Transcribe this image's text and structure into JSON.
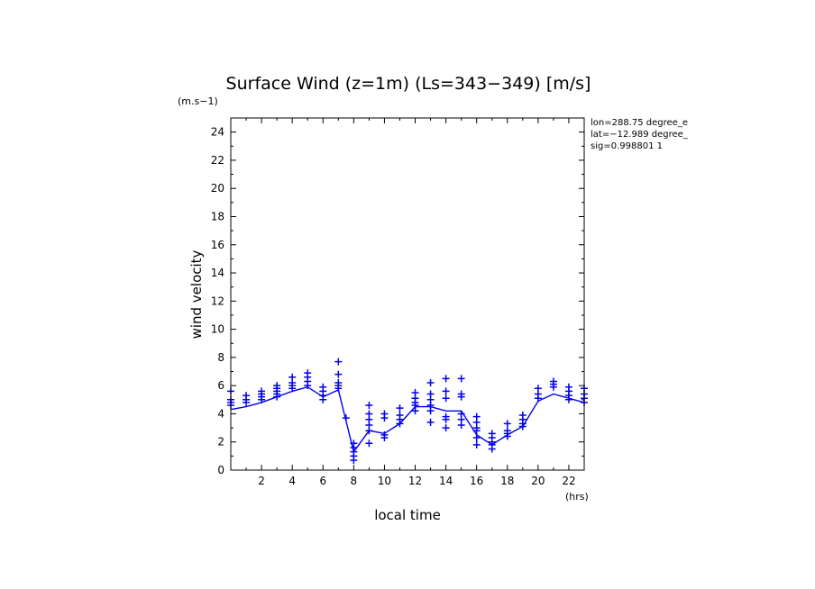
{
  "chart_data": {
    "type": "scatter",
    "title": "Surface Wind (z=1m) (Ls=343−349) [m/s]",
    "ylabel": "wind velocity",
    "xlabel": "local time",
    "y_unit": "(m.s−1)",
    "x_unit": "(hrs)",
    "xlim": [
      0,
      23
    ],
    "ylim": [
      0,
      25
    ],
    "x_ticks": [
      2,
      4,
      6,
      8,
      10,
      12,
      14,
      16,
      18,
      20,
      22
    ],
    "y_ticks": [
      0,
      2,
      4,
      6,
      8,
      10,
      12,
      14,
      16,
      18,
      20,
      22,
      24
    ],
    "grid": false,
    "color": "#0000ee",
    "info_lines": [
      "lon=288.75 degree_e",
      "lat=−12.989 degree_",
      "sig=0.998801 1"
    ],
    "series": [
      {
        "type": "line",
        "x": [
          0,
          1,
          2,
          3,
          4,
          5,
          6,
          7,
          8,
          9,
          10,
          11,
          12,
          13,
          14,
          15,
          16,
          17,
          18,
          19,
          20,
          21,
          22,
          23
        ],
        "y": [
          4.3,
          4.5,
          4.8,
          5.2,
          5.6,
          5.9,
          5.2,
          5.7,
          1.3,
          2.8,
          2.6,
          3.3,
          4.5,
          4.5,
          4.2,
          4.2,
          2.5,
          1.8,
          2.5,
          3.1,
          4.9,
          5.4,
          5.1,
          4.8
        ]
      },
      {
        "type": "scatter",
        "points": [
          [
            0,
            5.6
          ],
          [
            0,
            5.0
          ],
          [
            0,
            4.8
          ],
          [
            0,
            4.6
          ],
          [
            1,
            5.3
          ],
          [
            1,
            5.0
          ],
          [
            1,
            4.8
          ],
          [
            2,
            5.6
          ],
          [
            2,
            5.4
          ],
          [
            2,
            5.2
          ],
          [
            2,
            5.0
          ],
          [
            3,
            6.0
          ],
          [
            3,
            5.8
          ],
          [
            3,
            5.6
          ],
          [
            3,
            5.4
          ],
          [
            3,
            5.2
          ],
          [
            4,
            6.6
          ],
          [
            4,
            6.2
          ],
          [
            4,
            6.0
          ],
          [
            4,
            5.8
          ],
          [
            5,
            6.9
          ],
          [
            5,
            6.6
          ],
          [
            5,
            6.3
          ],
          [
            5,
            6.0
          ],
          [
            6,
            5.9
          ],
          [
            6,
            5.6
          ],
          [
            6,
            5.3
          ],
          [
            6,
            5.0
          ],
          [
            7,
            7.7
          ],
          [
            7,
            6.8
          ],
          [
            7,
            6.2
          ],
          [
            7,
            6.0
          ],
          [
            7,
            5.8
          ],
          [
            7.5,
            3.7
          ],
          [
            8,
            1.9
          ],
          [
            8,
            1.6
          ],
          [
            8,
            1.3
          ],
          [
            8,
            1.0
          ],
          [
            8,
            0.7
          ],
          [
            9,
            4.6
          ],
          [
            9,
            4.0
          ],
          [
            9,
            3.6
          ],
          [
            9,
            3.2
          ],
          [
            9,
            2.8
          ],
          [
            9,
            1.9
          ],
          [
            10,
            4.0
          ],
          [
            10,
            3.7
          ],
          [
            10,
            2.5
          ],
          [
            10,
            2.3
          ],
          [
            11,
            4.4
          ],
          [
            11,
            3.9
          ],
          [
            11,
            3.6
          ],
          [
            11,
            3.3
          ],
          [
            12,
            5.5
          ],
          [
            12,
            5.1
          ],
          [
            12,
            4.8
          ],
          [
            12,
            4.6
          ],
          [
            12,
            4.2
          ],
          [
            13,
            6.2
          ],
          [
            13,
            5.4
          ],
          [
            13,
            5.0
          ],
          [
            13,
            4.6
          ],
          [
            13,
            4.2
          ],
          [
            13,
            3.4
          ],
          [
            14,
            6.5
          ],
          [
            14,
            5.6
          ],
          [
            14,
            5.1
          ],
          [
            14,
            3.8
          ],
          [
            14,
            3.6
          ],
          [
            14,
            3.0
          ],
          [
            15,
            6.5
          ],
          [
            15,
            5.4
          ],
          [
            15,
            5.2
          ],
          [
            15,
            4.0
          ],
          [
            15,
            3.6
          ],
          [
            15,
            3.2
          ],
          [
            16,
            3.8
          ],
          [
            16,
            3.4
          ],
          [
            16,
            3.0
          ],
          [
            16,
            2.8
          ],
          [
            16,
            2.3
          ],
          [
            16,
            1.8
          ],
          [
            17,
            2.6
          ],
          [
            17,
            2.3
          ],
          [
            17,
            2.0
          ],
          [
            17,
            1.8
          ],
          [
            17,
            1.5
          ],
          [
            18,
            3.3
          ],
          [
            18,
            2.8
          ],
          [
            18,
            2.6
          ],
          [
            18,
            2.4
          ],
          [
            19,
            3.9
          ],
          [
            19,
            3.6
          ],
          [
            19,
            3.3
          ],
          [
            19,
            3.1
          ],
          [
            20,
            5.8
          ],
          [
            20,
            5.4
          ],
          [
            20,
            5.1
          ],
          [
            21,
            6.3
          ],
          [
            21,
            6.1
          ],
          [
            21,
            5.9
          ],
          [
            22,
            5.9
          ],
          [
            22,
            5.6
          ],
          [
            22,
            5.3
          ],
          [
            22,
            5.0
          ],
          [
            23,
            5.8
          ],
          [
            23,
            5.4
          ],
          [
            23,
            5.1
          ],
          [
            23,
            4.8
          ]
        ]
      }
    ]
  }
}
